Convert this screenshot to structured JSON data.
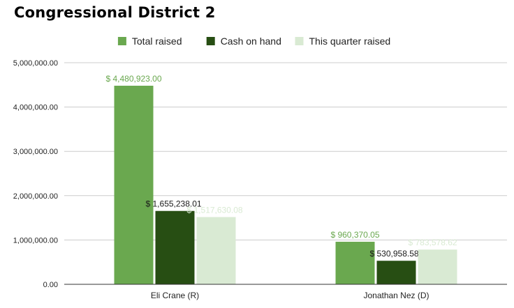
{
  "chart_data": {
    "type": "bar",
    "title": "Congressional District 2",
    "xlabel": "",
    "ylabel": "",
    "categories": [
      "Eli Crane (R)",
      "Jonathan Nez (D)"
    ],
    "series": [
      {
        "name": "Total raised",
        "color": "#6aa84f",
        "values": [
          4480923.0,
          960370.05
        ],
        "labels": [
          "$ 4,480,923.00",
          "$ 960,370.05"
        ]
      },
      {
        "name": "Cash on hand",
        "color": "#274e13",
        "values": [
          1655238.01,
          530958.58
        ],
        "labels": [
          "$ 1,655,238.01",
          "$ 530,958.58"
        ]
      },
      {
        "name": "This quarter raised",
        "color": "#d9ead3",
        "values": [
          1517630.08,
          783578.62
        ],
        "labels": [
          "$ 1,517,630.08",
          "$ 783,578.62"
        ]
      }
    ],
    "ylim": [
      0,
      5000000
    ],
    "yticks": [
      0,
      1000000,
      2000000,
      3000000,
      4000000,
      5000000
    ],
    "ytick_labels": [
      "0.00",
      "1,000,000.00",
      "2,000,000.00",
      "3,000,000.00",
      "4,000,000.00",
      "5,000,000.00"
    ],
    "grid": true,
    "legend_position": "top"
  }
}
